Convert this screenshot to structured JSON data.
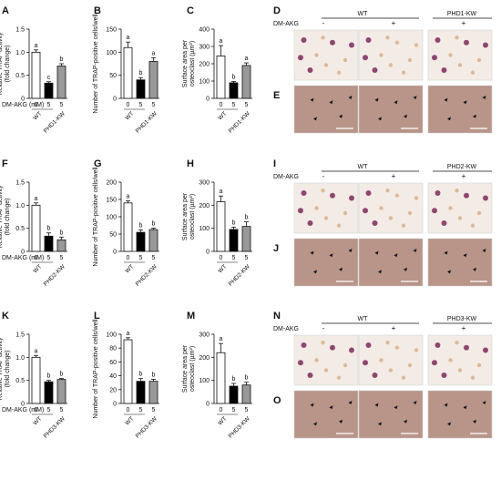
{
  "colors": {
    "axis": "#111111",
    "bar_control": "#ffffff",
    "bar_treated": "#000000",
    "bar_kw": "#999999",
    "micro_trap_bg": "#f3ece6",
    "micro_stain_bg": "#b99489",
    "micro_cells_purple": "#7a2a5a",
    "micro_cells_tan": "#d9b08a",
    "arrowhead": "#111111"
  },
  "rows": [
    {
      "dm_akg_label": "DM-AKG (mM)",
      "charts": [
        {
          "letter": "A",
          "ylabel": [
            "Relative TRAP activity",
            "(fold change)"
          ],
          "ylim": [
            0,
            1.5
          ],
          "ticks": [
            "0",
            "0.5",
            "1.0",
            "1.5"
          ],
          "values": [
            1.0,
            0.33,
            0.7
          ],
          "errors": [
            0.05,
            0.03,
            0.05
          ],
          "letters": [
            "a",
            "c",
            "b"
          ]
        },
        {
          "letter": "B",
          "ylabel": [
            "Number of TRAP-positive cells/well"
          ],
          "ylim": [
            0,
            150
          ],
          "ticks": [
            "0",
            "50",
            "100",
            "150"
          ],
          "values": [
            110,
            40,
            80
          ],
          "errors": [
            12,
            5,
            8
          ],
          "letters": [
            "a",
            "b",
            "a"
          ]
        },
        {
          "letter": "C",
          "ylabel": [
            "Surface area per",
            "osteoclast (µm²)"
          ],
          "ylim": [
            0,
            400
          ],
          "ticks": [
            "0",
            "100",
            "200",
            "300",
            "400"
          ],
          "values": [
            245,
            90,
            190
          ],
          "errors": [
            60,
            8,
            15
          ],
          "letters": [
            "a",
            "b",
            "a"
          ]
        }
      ],
      "doses": [
        "0",
        "5",
        "5"
      ],
      "groups": [
        "WT",
        "PHD1-KW"
      ],
      "micro": {
        "letter_top": "D",
        "letter_bottom": "E",
        "header_wt": "WT",
        "header_kw": "PHD1-KW",
        "dm_label": "DM-AKG",
        "signs": [
          "-",
          "+",
          "+"
        ]
      }
    },
    {
      "dm_akg_label": "DM-AKG (mM)",
      "charts": [
        {
          "letter": "F",
          "ylabel": [
            "Relative TRAP activity",
            "(fold change)"
          ],
          "ylim": [
            0,
            1.5
          ],
          "ticks": [
            "0",
            "0.5",
            "1.0",
            "1.5"
          ],
          "values": [
            1.0,
            0.33,
            0.25
          ],
          "errors": [
            0.05,
            0.07,
            0.06
          ],
          "letters": [
            "a",
            "b",
            "b"
          ]
        },
        {
          "letter": "G",
          "ylabel": [
            "Number of TRAP-positive cells/well"
          ],
          "ylim": [
            0,
            200
          ],
          "ticks": [
            "0",
            "50",
            "100",
            "150",
            "200"
          ],
          "values": [
            140,
            55,
            63
          ],
          "errors": [
            6,
            7,
            4
          ],
          "letters": [
            "a",
            "b",
            "b"
          ]
        },
        {
          "letter": "H",
          "ylabel": [
            "Surface area per",
            "osteoclast (µm²)"
          ],
          "ylim": [
            0,
            300
          ],
          "ticks": [
            "0",
            "100",
            "200",
            "300"
          ],
          "values": [
            215,
            95,
            108
          ],
          "errors": [
            25,
            10,
            20
          ],
          "letters": [
            "a",
            "b",
            "b"
          ]
        }
      ],
      "doses": [
        "0",
        "5",
        "5"
      ],
      "groups": [
        "WT",
        "PHD2-KW"
      ],
      "micro": {
        "letter_top": "I",
        "letter_bottom": "J",
        "header_wt": "WT",
        "header_kw": "PHD2-KW",
        "dm_label": "DM-AKG",
        "signs": [
          "-",
          "+",
          "+"
        ]
      }
    },
    {
      "dm_akg_label": "DM-AKG (mM)",
      "charts": [
        {
          "letter": "K",
          "ylabel": [
            "Relative TRAP activity",
            "(fold change)"
          ],
          "ylim": [
            0,
            1.5
          ],
          "ticks": [
            "0",
            "0.5",
            "1.0",
            "1.5"
          ],
          "values": [
            1.0,
            0.47,
            0.52
          ],
          "errors": [
            0.04,
            0.03,
            0.02
          ],
          "letters": [
            "a",
            "b",
            "b"
          ]
        },
        {
          "letter": "L",
          "ylabel": [
            "Number of TRAP-positive cells/well"
          ],
          "ylim": [
            0,
            100
          ],
          "ticks": [
            "0",
            "20",
            "40",
            "60",
            "80",
            "100"
          ],
          "values": [
            92,
            32,
            32
          ],
          "errors": [
            3,
            4,
            3
          ],
          "letters": [
            "a",
            "b",
            "b"
          ]
        },
        {
          "letter": "M",
          "ylabel": [
            "Surface area per",
            "osteoclast (µm²)"
          ],
          "ylim": [
            0,
            300
          ],
          "ticks": [
            "0",
            "100",
            "200",
            "300"
          ],
          "values": [
            220,
            75,
            80
          ],
          "errors": [
            40,
            12,
            12
          ],
          "letters": [
            "a",
            "b",
            "b"
          ]
        }
      ],
      "doses": [
        "0",
        "5",
        "5"
      ],
      "groups": [
        "WT",
        "PHD3-KW"
      ],
      "micro": {
        "letter_top": "N",
        "letter_bottom": "O",
        "header_wt": "WT",
        "header_kw": "PHD3-KW",
        "dm_label": "DM-AKG",
        "signs": [
          "-",
          "+",
          "+"
        ]
      }
    }
  ],
  "chart_data": [
    {
      "type": "bar",
      "panel": "A",
      "categories": [
        "WT 0",
        "WT 5",
        "PHD1-KW 5"
      ],
      "values": [
        1.0,
        0.33,
        0.7
      ],
      "errors": [
        0.05,
        0.03,
        0.05
      ],
      "ylabel": "Relative TRAP activity (fold change)",
      "xlabel": "DM-AKG (mM)",
      "ylim": [
        0,
        1.5
      ]
    },
    {
      "type": "bar",
      "panel": "B",
      "categories": [
        "WT 0",
        "WT 5",
        "PHD1-KW 5"
      ],
      "values": [
        110,
        40,
        80
      ],
      "errors": [
        12,
        5,
        8
      ],
      "ylabel": "Number of TRAP-positive cells/well",
      "ylim": [
        0,
        150
      ]
    },
    {
      "type": "bar",
      "panel": "C",
      "categories": [
        "WT 0",
        "WT 5",
        "PHD1-KW 5"
      ],
      "values": [
        245,
        90,
        190
      ],
      "errors": [
        60,
        8,
        15
      ],
      "ylabel": "Surface area per osteoclast (µm²)",
      "ylim": [
        0,
        400
      ]
    },
    {
      "type": "bar",
      "panel": "F",
      "categories": [
        "WT 0",
        "WT 5",
        "PHD2-KW 5"
      ],
      "values": [
        1.0,
        0.33,
        0.25
      ],
      "errors": [
        0.05,
        0.07,
        0.06
      ],
      "ylabel": "Relative TRAP activity (fold change)",
      "xlabel": "DM-AKG (mM)",
      "ylim": [
        0,
        1.5
      ]
    },
    {
      "type": "bar",
      "panel": "G",
      "categories": [
        "WT 0",
        "WT 5",
        "PHD2-KW 5"
      ],
      "values": [
        140,
        55,
        63
      ],
      "errors": [
        6,
        7,
        4
      ],
      "ylabel": "Number of TRAP-positive cells/well",
      "ylim": [
        0,
        200
      ]
    },
    {
      "type": "bar",
      "panel": "H",
      "categories": [
        "WT 0",
        "WT 5",
        "PHD2-KW 5"
      ],
      "values": [
        215,
        95,
        108
      ],
      "errors": [
        25,
        10,
        20
      ],
      "ylabel": "Surface area per osteoclast (µm²)",
      "ylim": [
        0,
        300
      ]
    },
    {
      "type": "bar",
      "panel": "K",
      "categories": [
        "WT 0",
        "WT 5",
        "PHD3-KW 5"
      ],
      "values": [
        1.0,
        0.47,
        0.52
      ],
      "errors": [
        0.04,
        0.03,
        0.02
      ],
      "ylabel": "Relative TRAP activity (fold change)",
      "xlabel": "DM-AKG (mM)",
      "ylim": [
        0,
        1.5
      ]
    },
    {
      "type": "bar",
      "panel": "L",
      "categories": [
        "WT 0",
        "WT 5",
        "PHD3-KW 5"
      ],
      "values": [
        92,
        32,
        32
      ],
      "errors": [
        3,
        4,
        3
      ],
      "ylabel": "Number of TRAP-positive cells/well",
      "ylim": [
        0,
        100
      ]
    },
    {
      "type": "bar",
      "panel": "M",
      "categories": [
        "WT 0",
        "WT 5",
        "PHD3-KW 5"
      ],
      "values": [
        220,
        75,
        80
      ],
      "errors": [
        40,
        12,
        12
      ],
      "ylabel": "Surface area per osteoclast (µm²)",
      "ylim": [
        0,
        300
      ]
    }
  ]
}
